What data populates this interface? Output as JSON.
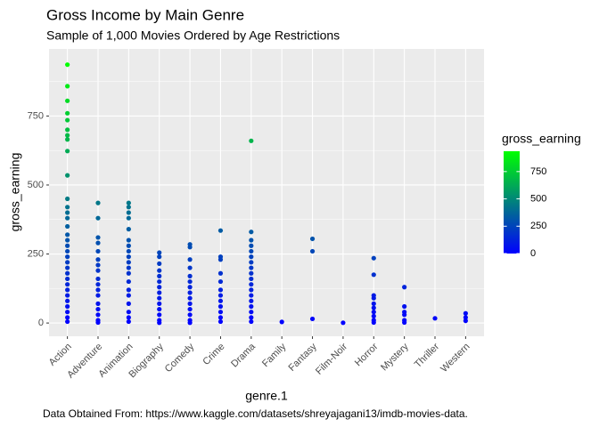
{
  "chart_data": {
    "type": "scatter",
    "title": "Gross Income by Main Genre",
    "subtitle": "Sample of 1,000 Movies Ordered by Age Restrictions",
    "x_label": "genre.1",
    "y_label": "gross_earning",
    "caption": "Data Obtained From: https://www.kaggle.com/datasets/shreyajagani13/imdb-movies-data.",
    "categories": [
      "Action",
      "Adventure",
      "Animation",
      "Biography",
      "Comedy",
      "Crime",
      "Drama",
      "Family",
      "Fantasy",
      "Film-Noir",
      "Horror",
      "Mystery",
      "Thriller",
      "Western"
    ],
    "values": [
      [
        936,
        858,
        805,
        760,
        735,
        700,
        680,
        665,
        623,
        535,
        450,
        420,
        400,
        380,
        350,
        320,
        300,
        280,
        260,
        240,
        220,
        200,
        180,
        160,
        140,
        120,
        100,
        80,
        60,
        40,
        20,
        5
      ],
      [
        435,
        380,
        310,
        290,
        260,
        230,
        210,
        190,
        160,
        140,
        120,
        100,
        70,
        50,
        30,
        10,
        2
      ],
      [
        435,
        420,
        400,
        380,
        340,
        300,
        280,
        260,
        240,
        220,
        200,
        180,
        150,
        120,
        100,
        70,
        40,
        20,
        5
      ],
      [
        255,
        240,
        215,
        190,
        170,
        150,
        130,
        110,
        90,
        70,
        50,
        30,
        10,
        1
      ],
      [
        285,
        275,
        230,
        200,
        170,
        150,
        130,
        110,
        90,
        70,
        50,
        30,
        10,
        1
      ],
      [
        335,
        240,
        230,
        180,
        150,
        120,
        100,
        80,
        60,
        40,
        20,
        5
      ],
      [
        660,
        330,
        300,
        280,
        260,
        240,
        220,
        200,
        180,
        160,
        140,
        120,
        100,
        80,
        60,
        40,
        20,
        5
      ],
      [
        4
      ],
      [
        305,
        260,
        15
      ],
      [
        1
      ],
      [
        235,
        175,
        100,
        90,
        70,
        55,
        40,
        25,
        10,
        2
      ],
      [
        130,
        60,
        40,
        30,
        10,
        2
      ],
      [
        17
      ],
      [
        35,
        20,
        8
      ]
    ],
    "ylim": [
      -48,
      993
    ],
    "yticks": [
      0,
      250,
      500,
      750
    ],
    "yminor": [
      125,
      375,
      625,
      875
    ],
    "grid": true,
    "legend_title": "gross_earning",
    "color_low": "#0000ff",
    "color_high": "#00ff00",
    "colorlim": [
      0,
      936
    ],
    "color_ticks": [
      0,
      250,
      500,
      750
    ]
  }
}
